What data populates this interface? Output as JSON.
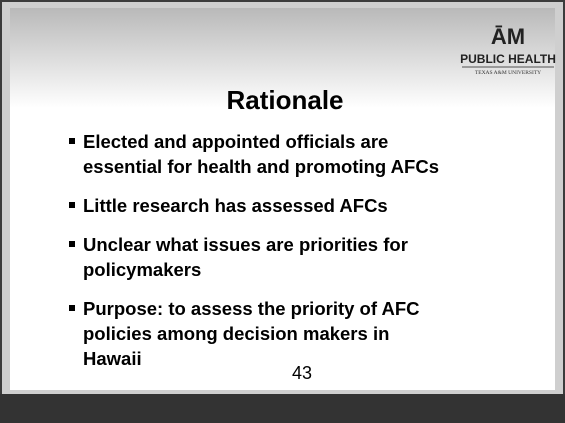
{
  "logo": {
    "mark": "ĀM",
    "name": "PUBLIC HEALTH",
    "university": "TEXAS A&M UNIVERSITY"
  },
  "title": "Rationale",
  "bullets": [
    [
      "Elected and appointed officials are",
      "essential for health and promoting AFCs"
    ],
    [
      "Little research has assessed AFCs"
    ],
    [
      "Unclear what issues are priorities for",
      "policymakers"
    ],
    [
      "Purpose: to assess the priority of AFC",
      "policies among decision makers in",
      "Hawaii"
    ]
  ],
  "page_number": "43"
}
